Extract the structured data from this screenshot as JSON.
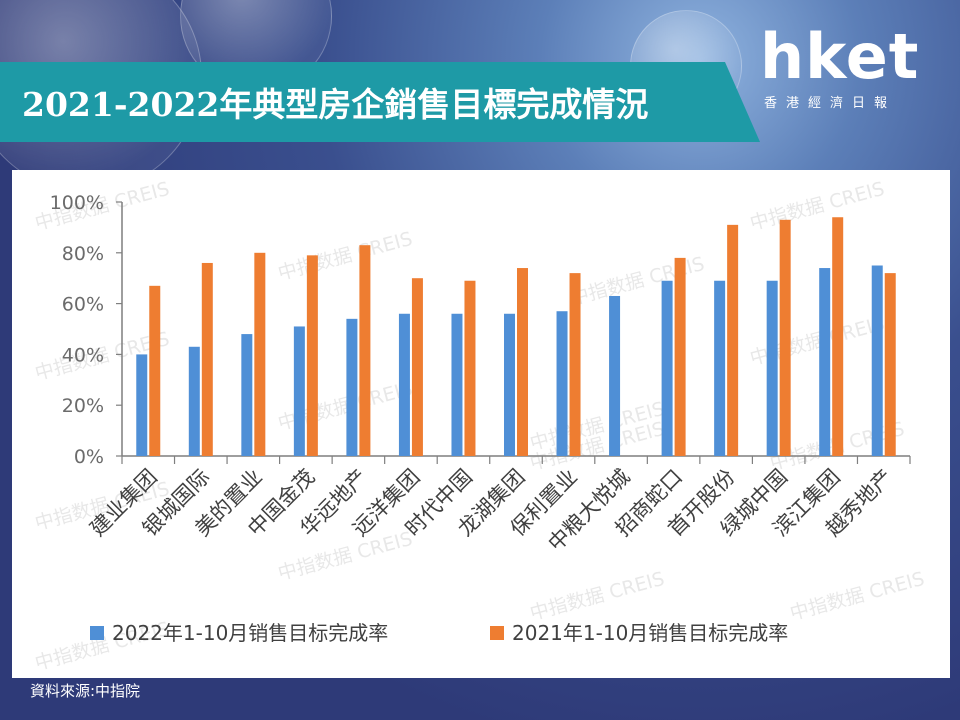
{
  "header": {
    "title": "2021-2022年典型房企銷售目標完成情況"
  },
  "logo": {
    "brand": "hket",
    "subtitle": "香港經濟日報"
  },
  "source": "資料來源:中指院",
  "watermark": "中指数据 CREIS",
  "colors": {
    "series_2022": "#4f8fd6",
    "series_2021": "#ee7d31",
    "title_bar": "#1e9aa6"
  },
  "chart_data": {
    "type": "bar",
    "categories": [
      "建业集团",
      "银城国际",
      "美的置业",
      "中国金茂",
      "华远地产",
      "远洋集团",
      "时代中国",
      "龙湖集团",
      "保利置业",
      "中粮大悦城",
      "招商蛇口",
      "首开股份",
      "绿城中国",
      "滨江集团",
      "越秀地产"
    ],
    "series": [
      {
        "name": "2022年1-10月销售目标完成率",
        "values": [
          40,
          43,
          48,
          51,
          54,
          56,
          56,
          56,
          57,
          63,
          69,
          69,
          69,
          74,
          75
        ]
      },
      {
        "name": "2021年1-10月销售目标完成率",
        "values": [
          67,
          76,
          80,
          79,
          83,
          70,
          69,
          74,
          72,
          null,
          78,
          91,
          93,
          94,
          72
        ]
      }
    ],
    "yticks": [
      "0%",
      "20%",
      "40%",
      "60%",
      "80%",
      "100%"
    ],
    "ylim": [
      0,
      100
    ],
    "legend": "bottom"
  }
}
